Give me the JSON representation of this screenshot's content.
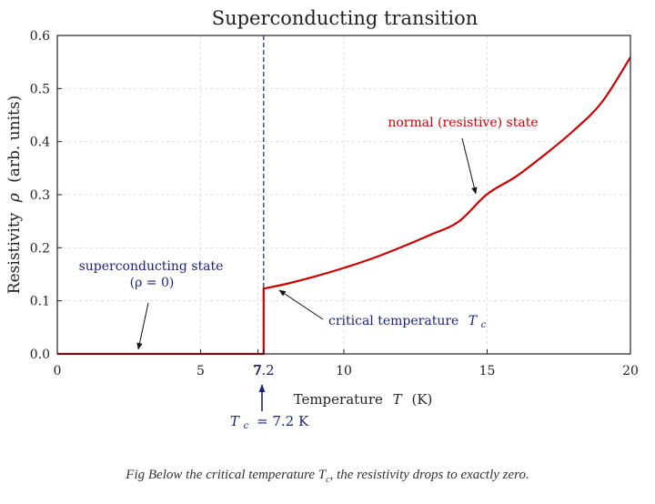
{
  "chart_data": {
    "type": "line",
    "title": "Superconducting transition",
    "xlabel": "Temperature",
    "xlabel_symbol": "T",
    "xlabel_unit": "(K)",
    "ylabel": "Resistivity",
    "ylabel_symbol": "ρ",
    "ylabel_unit": "(arb. units)",
    "xlim": [
      0,
      20
    ],
    "ylim": [
      0,
      0.6
    ],
    "grid": true,
    "x_ticks": [
      0,
      5,
      7,
      7.2,
      10,
      15,
      20
    ],
    "x_tick_labels": [
      "0",
      "5",
      "7",
      "7.2",
      "10",
      "15",
      "20"
    ],
    "y_ticks": [
      0,
      0.1,
      0.2,
      0.3,
      0.4,
      0.5,
      0.6
    ],
    "y_tick_labels": [
      "0.0",
      "0.1",
      "0.2",
      "0.3",
      "0.4",
      "0.5",
      "0.6"
    ],
    "series": [
      {
        "color": "#cc0000",
        "x": [
          0,
          7.2,
          7.2,
          8,
          9,
          10,
          11,
          12,
          13,
          14,
          15,
          16,
          17,
          18,
          19,
          20
        ],
        "y": [
          0,
          0,
          0.123,
          0.132,
          0.146,
          0.162,
          0.18,
          0.201,
          0.224,
          0.249,
          0.301,
          0.334,
          0.375,
          0.42,
          0.474,
          0.559
        ]
      }
    ],
    "vline": {
      "x": 7.2,
      "color": "#1a237e",
      "style": "dashed"
    },
    "annotations": [
      {
        "id": "normal",
        "text": "normal (resistive) state",
        "color": "#cc0000",
        "arrow_to": [
          14.9,
          0.3
        ]
      },
      {
        "id": "super1",
        "text": "superconducting state",
        "color": "#1a237e",
        "arrow_to": [
          2.9,
          0.005
        ]
      },
      {
        "id": "super2",
        "text": "(ρ = 0)",
        "color": "#1a237e"
      },
      {
        "id": "critical",
        "text": "critical temperature",
        "symbol": "T",
        "sub": "c",
        "color": "#1a237e",
        "arrow_to": [
          7.25,
          0.123
        ]
      },
      {
        "id": "tc",
        "text": "= 7.2 K",
        "symbol": "T",
        "sub": "c",
        "color": "#1a237e",
        "arrow_to": [
          7.2,
          -0.058
        ]
      }
    ],
    "colors": {
      "curve": "#cc0000",
      "accent": "#1a237e",
      "text": "#222222"
    }
  },
  "caption": "Fig  Below the critical temperature T, the resistivity drops to exactly zero.",
  "caption_parts": {
    "prefix": "Fig  Below the critical temperature ",
    "symbol": "T",
    "sub": "c",
    "suffix": ", the resistivity drops to exactly zero."
  }
}
